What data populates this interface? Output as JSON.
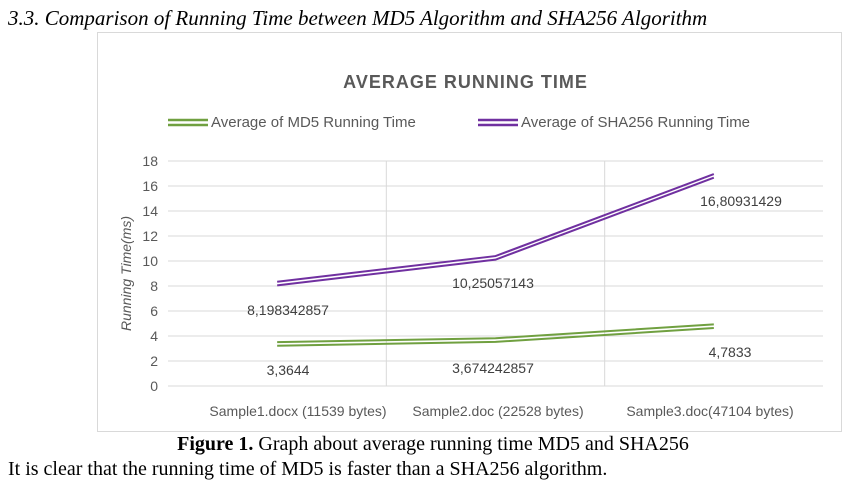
{
  "heading": "3.3. Comparison of Running Time between MD5 Algorithm and SHA256 Algorithm",
  "caption": {
    "label": "Figure 1.",
    "text": " Graph about average running time MD5 and SHA256"
  },
  "body_text": "It is clear that the running time of MD5 is faster than a SHA256 algorithm.",
  "colors": {
    "md5": "#70a040",
    "sha256": "#7030a0",
    "grid": "#d9d9d9",
    "text": "#595959"
  },
  "chart_data": {
    "type": "line",
    "title": "AVERAGE RUNNING TIME",
    "xlabel": "",
    "ylabel": "Running Time(ms)",
    "categories": [
      "Sample1.docx (11539 bytes)",
      "Sample2.doc (22528 bytes)",
      "Sample3.doc(47104 bytes)"
    ],
    "ylim": [
      0,
      18
    ],
    "yticks": [
      "0",
      "2",
      "4",
      "6",
      "8",
      "10",
      "12",
      "14",
      "16",
      "18"
    ],
    "grid": true,
    "legend": "top",
    "series": [
      {
        "name": "Average of MD5 Running Time",
        "values": [
          3.3644,
          3.674242857,
          4.7833
        ],
        "labels": [
          "3,3644",
          "3,674242857",
          "4,7833"
        ],
        "color": "#70a040"
      },
      {
        "name": "Average of SHA256 Running Time",
        "values": [
          8.198342857,
          10.25057143,
          16.80931429
        ],
        "labels": [
          "8,198342857",
          "10,25057143",
          "16,80931429"
        ],
        "color": "#7030a0"
      }
    ]
  }
}
